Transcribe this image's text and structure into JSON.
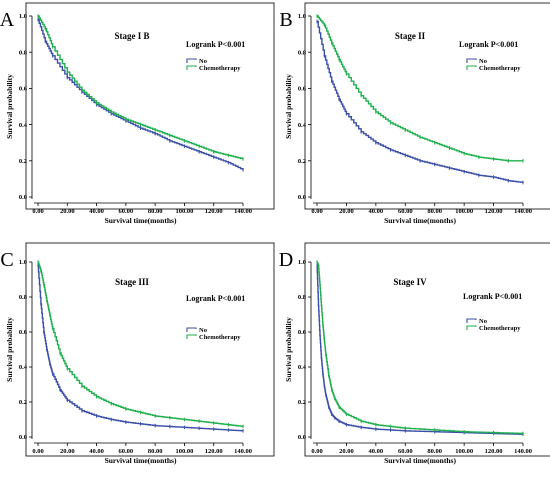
{
  "chart_data": [
    {
      "type": "line",
      "panel_label": "A",
      "title": "Stage I B",
      "annotation": "Logrank P<0.001",
      "xlabel": "Survival time(months)",
      "ylabel": "Survival probability",
      "xlim": [
        0,
        140
      ],
      "ylim": [
        0,
        1
      ],
      "x_ticks": [
        "0.00",
        "20.00",
        "40.00",
        "60.00",
        "80.00",
        "100.00",
        "120.00",
        "140.00"
      ],
      "y_ticks": [
        "0.0",
        "0.2",
        "0.4",
        "0.6",
        "0.8",
        "1.0"
      ],
      "legend_position": "upper-right",
      "grid": false,
      "series": [
        {
          "name": "No",
          "color": "#3b4fa8",
          "x": [
            0,
            5,
            10,
            20,
            30,
            40,
            50,
            60,
            70,
            80,
            90,
            100,
            110,
            120,
            130,
            140
          ],
          "values": [
            0.98,
            0.86,
            0.78,
            0.66,
            0.58,
            0.51,
            0.46,
            0.42,
            0.38,
            0.35,
            0.31,
            0.28,
            0.25,
            0.22,
            0.19,
            0.15
          ]
        },
        {
          "name": "Chemotherapy",
          "color": "#1fb04d",
          "x": [
            0,
            5,
            10,
            20,
            30,
            40,
            50,
            60,
            70,
            80,
            90,
            100,
            110,
            120,
            130,
            140
          ],
          "values": [
            1.0,
            0.93,
            0.83,
            0.69,
            0.59,
            0.52,
            0.47,
            0.43,
            0.4,
            0.37,
            0.34,
            0.31,
            0.28,
            0.25,
            0.23,
            0.21
          ]
        }
      ]
    },
    {
      "type": "line",
      "panel_label": "B",
      "title": "Stage II",
      "annotation": "Logrank P<0.001",
      "xlabel": "Survival time(months)",
      "ylabel": "Survival probability",
      "xlim": [
        0,
        140
      ],
      "ylim": [
        0,
        1
      ],
      "x_ticks": [
        "0.00",
        "20.00",
        "40.00",
        "60.00",
        "80.00",
        "100.00",
        "120.00",
        "140.00"
      ],
      "y_ticks": [
        "0.0",
        "0.2",
        "0.4",
        "0.6",
        "0.8",
        "1.0"
      ],
      "legend_position": "upper-right",
      "grid": false,
      "series": [
        {
          "name": "No",
          "color": "#3b4fa8",
          "x": [
            0,
            5,
            10,
            15,
            20,
            30,
            40,
            50,
            60,
            70,
            80,
            90,
            100,
            110,
            120,
            130,
            140
          ],
          "values": [
            0.97,
            0.78,
            0.64,
            0.54,
            0.46,
            0.36,
            0.3,
            0.26,
            0.23,
            0.2,
            0.18,
            0.16,
            0.14,
            0.12,
            0.11,
            0.09,
            0.08
          ]
        },
        {
          "name": "Chemotherapy",
          "color": "#1fb04d",
          "x": [
            0,
            5,
            10,
            15,
            20,
            30,
            40,
            50,
            60,
            70,
            80,
            90,
            100,
            110,
            120,
            130,
            140
          ],
          "values": [
            1.0,
            0.95,
            0.85,
            0.76,
            0.68,
            0.56,
            0.47,
            0.41,
            0.37,
            0.33,
            0.3,
            0.27,
            0.24,
            0.22,
            0.21,
            0.2,
            0.2
          ]
        }
      ]
    },
    {
      "type": "line",
      "panel_label": "C",
      "title": "Stage III",
      "annotation": "Logrank P<0.001",
      "xlabel": "Survival time(months)",
      "ylabel": "Survival probability",
      "xlim": [
        0,
        140
      ],
      "ylim": [
        0,
        1
      ],
      "x_ticks": [
        "0.00",
        "20.00",
        "40.00",
        "60.00",
        "80.00",
        "100.00",
        "120.00",
        "140.00"
      ],
      "y_ticks": [
        "0.0",
        "0.2",
        "0.4",
        "0.6",
        "0.8",
        "1.0"
      ],
      "legend_position": "upper-right",
      "grid": false,
      "series": [
        {
          "name": "No",
          "color": "#3b4fa8",
          "x": [
            0,
            2,
            4,
            6,
            8,
            10,
            15,
            20,
            30,
            40,
            50,
            60,
            70,
            80,
            90,
            100,
            110,
            120,
            130,
            140
          ],
          "values": [
            0.98,
            0.76,
            0.6,
            0.5,
            0.42,
            0.36,
            0.27,
            0.21,
            0.15,
            0.12,
            0.1,
            0.085,
            0.075,
            0.065,
            0.06,
            0.055,
            0.05,
            0.045,
            0.04,
            0.035
          ]
        },
        {
          "name": "Chemotherapy",
          "color": "#1fb04d",
          "x": [
            0,
            2,
            4,
            6,
            8,
            10,
            15,
            20,
            30,
            40,
            50,
            60,
            70,
            80,
            90,
            100,
            110,
            120,
            130,
            140
          ],
          "values": [
            1.0,
            0.95,
            0.87,
            0.78,
            0.7,
            0.62,
            0.48,
            0.39,
            0.29,
            0.23,
            0.19,
            0.16,
            0.14,
            0.12,
            0.11,
            0.1,
            0.09,
            0.08,
            0.07,
            0.06
          ]
        }
      ]
    },
    {
      "type": "line",
      "panel_label": "D",
      "title": "Stage IV",
      "annotation": "Logrank P<0.001",
      "xlabel": "Survival time(months)",
      "ylabel": "Survival probability",
      "xlim": [
        0,
        140
      ],
      "ylim": [
        0,
        1
      ],
      "x_ticks": [
        "0.00",
        "20.00",
        "40.00",
        "60.00",
        "80.00",
        "100.00",
        "120.00",
        "140.00"
      ],
      "y_ticks": [
        "0.0",
        "0.2",
        "0.4",
        "0.6",
        "0.8",
        "1.0"
      ],
      "legend_position": "upper-right",
      "grid": false,
      "series": [
        {
          "name": "No",
          "color": "#3b4fa8",
          "x": [
            0,
            1,
            2,
            3,
            4,
            5,
            6,
            8,
            10,
            12,
            15,
            20,
            30,
            40,
            50,
            60,
            80,
            100,
            120,
            140
          ],
          "values": [
            0.98,
            0.75,
            0.58,
            0.45,
            0.36,
            0.29,
            0.24,
            0.17,
            0.13,
            0.11,
            0.09,
            0.07,
            0.055,
            0.045,
            0.04,
            0.035,
            0.03,
            0.025,
            0.02,
            0.015
          ]
        },
        {
          "name": "Chemotherapy",
          "color": "#1fb04d",
          "x": [
            0,
            1,
            2,
            3,
            4,
            5,
            6,
            8,
            10,
            12,
            15,
            20,
            30,
            40,
            50,
            60,
            80,
            100,
            120,
            140
          ],
          "values": [
            1.0,
            0.98,
            0.87,
            0.75,
            0.64,
            0.55,
            0.47,
            0.35,
            0.27,
            0.22,
            0.17,
            0.13,
            0.09,
            0.07,
            0.06,
            0.05,
            0.04,
            0.03,
            0.025,
            0.02
          ]
        }
      ]
    }
  ]
}
